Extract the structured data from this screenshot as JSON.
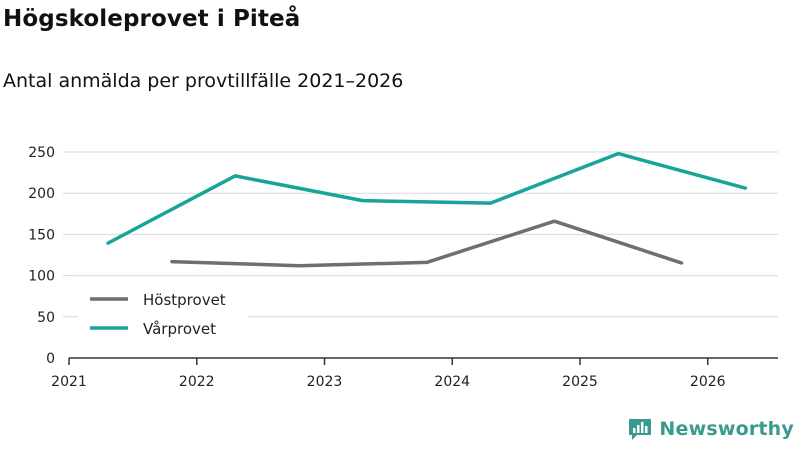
{
  "title": "Högskoleprovet i Piteå",
  "subtitle": "Antal anmälda per provtillfälle 2021–2026",
  "brand": {
    "name": "Newsworthy",
    "icon": "newsworthy-logo-icon"
  },
  "colors": {
    "host": "#6e6e73",
    "var": "#16a596",
    "grid": "#d9d9d9",
    "axis": "#333333"
  },
  "chart_data": {
    "type": "line",
    "title": "Högskoleprovet i Piteå",
    "subtitle": "Antal anmälda per provtillfälle 2021–2026",
    "xlabel": "",
    "ylabel": "",
    "xlim": [
      2021,
      2026.55
    ],
    "ylim": [
      0,
      250
    ],
    "x_ticks": [
      "2021",
      "2022",
      "2023",
      "2024",
      "2025",
      "2026"
    ],
    "y_ticks": [
      "0",
      "50",
      "100",
      "150",
      "200",
      "250"
    ],
    "grid": true,
    "legend_position": "bottom-left",
    "series": [
      {
        "name": "Höstprovet",
        "color": "#6e6e73",
        "x": [
          2021.8,
          2022.8,
          2023.8,
          2024.8,
          2025.8
        ],
        "values": [
          117,
          112,
          116,
          166,
          115
        ]
      },
      {
        "name": "Vårprovet",
        "color": "#16a596",
        "x": [
          2021.3,
          2022.3,
          2023.3,
          2024.3,
          2025.3,
          2026.3
        ],
        "values": [
          139,
          221,
          191,
          188,
          248,
          206
        ]
      }
    ]
  }
}
